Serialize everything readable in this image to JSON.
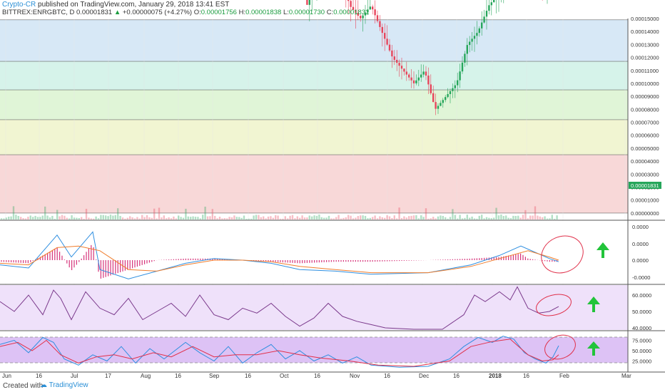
{
  "header": {
    "author": "Crypto-CR",
    "published": "published on TradingView.com, January 29, 2018 13:41 EST",
    "symbol": "BITTREX:ENRGBTC, D",
    "price": "0.00001831",
    "change_arrow": "▲",
    "change": "+0.00000075 (+4.27%)",
    "open_label": "O:",
    "open": "0.00001756",
    "high_label": "H:",
    "high": "0.00001838",
    "low_label": "L:",
    "low": "0.00001730",
    "close_label": "C:",
    "close": "0.00001831"
  },
  "footer": {
    "created_with": "Created with",
    "brand": "TradingView"
  },
  "colors": {
    "up": "#26a65b",
    "down": "#e8455c",
    "band_blue": "#d7e8f6",
    "band_teal": "#d6f3ea",
    "band_green": "#e0f5d7",
    "band_yellow": "#f1f5d2",
    "band_red": "#f8d8d8",
    "macd_line": "#2f8fe0",
    "signal_line": "#f07d2c",
    "histogram": "#d6337a",
    "rsi_line": "#7b3a8c",
    "indicator_bg": "#efe1fa",
    "annotation_circle": "#e0304a",
    "annotation_arrow": "#22c43a"
  },
  "chart_data": [
    {
      "type": "candlestick",
      "title": "BITTREX:ENRGBTC, D",
      "y_range": [
        -5e-07,
        1.5e-05
      ],
      "y_ticks": [
        "0.00015000",
        "0.00014000",
        "0.00013000",
        "0.00012000",
        "0.00011000",
        "0.00010000",
        "0.00009000",
        "0.00008000",
        "0.00007000",
        "0.00006000",
        "0.00005000",
        "0.00004000",
        "0.00003000",
        "0.00002000",
        "0.00001000",
        "0.00000000"
      ],
      "last_price_label": "0.00001831",
      "x_ticks": [
        "Jun",
        "16",
        "Jul",
        "17",
        "Aug",
        "16",
        "Sep",
        "16",
        "Oct",
        "16",
        "Nov",
        "16",
        "Dec",
        "16",
        "2018",
        "16",
        "Feb",
        "Mar"
      ],
      "price_path": [
        [
          0,
          3.3
        ],
        [
          10,
          3.6
        ],
        [
          25,
          3.8
        ],
        [
          40,
          3.2
        ],
        [
          55,
          3.9
        ],
        [
          65,
          4.0
        ],
        [
          75,
          5.3
        ],
        [
          80,
          8.4
        ],
        [
          84,
          5.4
        ],
        [
          92,
          5.0
        ],
        [
          100,
          5.3
        ],
        [
          110,
          6.1
        ],
        [
          120,
          5.7
        ],
        [
          130,
          3.0
        ],
        [
          140,
          3.1
        ],
        [
          155,
          3.6
        ],
        [
          170,
          4.1
        ],
        [
          185,
          3.2
        ],
        [
          200,
          2.9
        ],
        [
          215,
          2.8
        ],
        [
          230,
          2.7
        ],
        [
          245,
          2.5
        ],
        [
          260,
          2.6
        ],
        [
          275,
          2.6
        ],
        [
          285,
          3.3
        ],
        [
          300,
          3.1
        ],
        [
          315,
          3.0
        ],
        [
          330,
          2.9
        ],
        [
          345,
          3.0
        ],
        [
          360,
          3.2
        ],
        [
          375,
          2.9
        ],
        [
          390,
          2.8
        ],
        [
          405,
          2.5
        ],
        [
          420,
          2.0
        ],
        [
          430,
          1.6
        ],
        [
          445,
          1.8
        ],
        [
          460,
          2.1
        ],
        [
          475,
          1.9
        ],
        [
          490,
          1.6
        ],
        [
          505,
          1.5
        ],
        [
          520,
          1.6
        ],
        [
          535,
          1.4
        ],
        [
          550,
          1.2
        ],
        [
          565,
          1.1
        ],
        [
          580,
          1.0
        ],
        [
          595,
          1.1
        ],
        [
          610,
          0.8
        ],
        [
          625,
          0.9
        ],
        [
          640,
          1.0
        ],
        [
          655,
          1.3
        ],
        [
          670,
          1.4
        ],
        [
          685,
          1.6
        ],
        [
          700,
          1.7
        ],
        [
          715,
          2.0
        ],
        [
          725,
          3.0
        ],
        [
          735,
          2.2
        ],
        [
          745,
          1.9
        ],
        [
          760,
          1.7
        ],
        [
          775,
          1.8
        ],
        [
          783,
          1.83
        ]
      ],
      "levels": [
        0.0,
        4.5e-06,
        7.2e-06,
        9.5e-06,
        1.17e-05,
        1.49e-05
      ],
      "trendline": [
        [
          5,
          5.8
        ],
        [
          880,
          2.3
        ]
      ]
    },
    {
      "type": "line",
      "title": "",
      "y_ticks": [
        "0.0000",
        "0.0000",
        "0.0000",
        "-0.0000"
      ],
      "macd": [
        [
          0,
          -0.3
        ],
        [
          40,
          -0.5
        ],
        [
          80,
          1.6
        ],
        [
          100,
          0.2
        ],
        [
          130,
          1.8
        ],
        [
          140,
          -0.6
        ],
        [
          180,
          -1.2
        ],
        [
          220,
          -0.7
        ],
        [
          260,
          -0.2
        ],
        [
          300,
          0.1
        ],
        [
          340,
          0.0
        ],
        [
          380,
          -0.2
        ],
        [
          420,
          -0.6
        ],
        [
          470,
          -0.7
        ],
        [
          520,
          -0.9
        ],
        [
          600,
          -0.8
        ],
        [
          660,
          -0.3
        ],
        [
          700,
          0.3
        ],
        [
          730,
          0.9
        ],
        [
          750,
          0.5
        ],
        [
          770,
          0.1
        ],
        [
          783,
          -0.1
        ]
      ],
      "signal": [
        [
          0,
          -0.2
        ],
        [
          40,
          -0.3
        ],
        [
          80,
          0.8
        ],
        [
          110,
          0.9
        ],
        [
          140,
          0.6
        ],
        [
          180,
          -0.6
        ],
        [
          220,
          -0.7
        ],
        [
          260,
          -0.3
        ],
        [
          300,
          0.0
        ],
        [
          340,
          0.0
        ],
        [
          380,
          -0.1
        ],
        [
          420,
          -0.4
        ],
        [
          470,
          -0.6
        ],
        [
          520,
          -0.8
        ],
        [
          600,
          -0.8
        ],
        [
          660,
          -0.4
        ],
        [
          700,
          0.1
        ],
        [
          740,
          0.6
        ],
        [
          770,
          0.2
        ],
        [
          783,
          0.0
        ]
      ]
    },
    {
      "type": "line",
      "title": "",
      "y_ticks": [
        "60.0000",
        "50.0000",
        "40.0000"
      ],
      "rsi": [
        [
          0,
          56
        ],
        [
          20,
          50
        ],
        [
          40,
          60
        ],
        [
          60,
          48
        ],
        [
          75,
          63
        ],
        [
          85,
          58
        ],
        [
          100,
          45
        ],
        [
          120,
          62
        ],
        [
          140,
          52
        ],
        [
          160,
          48
        ],
        [
          180,
          58
        ],
        [
          200,
          45
        ],
        [
          220,
          50
        ],
        [
          240,
          55
        ],
        [
          260,
          47
        ],
        [
          280,
          60
        ],
        [
          300,
          48
        ],
        [
          320,
          45
        ],
        [
          340,
          52
        ],
        [
          360,
          49
        ],
        [
          380,
          55
        ],
        [
          400,
          47
        ],
        [
          420,
          41
        ],
        [
          440,
          46
        ],
        [
          460,
          55
        ],
        [
          480,
          47
        ],
        [
          500,
          44
        ],
        [
          520,
          42
        ],
        [
          540,
          40
        ],
        [
          580,
          39
        ],
        [
          620,
          39
        ],
        [
          650,
          48
        ],
        [
          665,
          60
        ],
        [
          680,
          56
        ],
        [
          700,
          62
        ],
        [
          715,
          57
        ],
        [
          725,
          65
        ],
        [
          740,
          52
        ],
        [
          755,
          49
        ],
        [
          770,
          50
        ],
        [
          783,
          53
        ]
      ]
    },
    {
      "type": "line",
      "title": "",
      "y_ticks": [
        "75.0000",
        "50.0000",
        "25.0000"
      ],
      "stoch_k": [
        [
          0,
          65
        ],
        [
          20,
          75
        ],
        [
          40,
          45
        ],
        [
          60,
          82
        ],
        [
          75,
          70
        ],
        [
          90,
          30
        ],
        [
          110,
          15
        ],
        [
          130,
          40
        ],
        [
          150,
          25
        ],
        [
          170,
          60
        ],
        [
          190,
          20
        ],
        [
          210,
          55
        ],
        [
          230,
          30
        ],
        [
          260,
          70
        ],
        [
          280,
          45
        ],
        [
          300,
          25
        ],
        [
          320,
          60
        ],
        [
          340,
          20
        ],
        [
          360,
          45
        ],
        [
          380,
          65
        ],
        [
          400,
          30
        ],
        [
          420,
          50
        ],
        [
          440,
          25
        ],
        [
          460,
          40
        ],
        [
          480,
          20
        ],
        [
          500,
          35
        ],
        [
          520,
          15
        ],
        [
          560,
          10
        ],
        [
          600,
          12
        ],
        [
          630,
          30
        ],
        [
          650,
          60
        ],
        [
          670,
          82
        ],
        [
          690,
          70
        ],
        [
          705,
          85
        ],
        [
          720,
          78
        ],
        [
          735,
          45
        ],
        [
          750,
          30
        ],
        [
          765,
          20
        ],
        [
          775,
          35
        ],
        [
          783,
          62
        ]
      ],
      "stoch_d": [
        [
          0,
          60
        ],
        [
          25,
          70
        ],
        [
          45,
          50
        ],
        [
          65,
          75
        ],
        [
          85,
          40
        ],
        [
          110,
          20
        ],
        [
          135,
          35
        ],
        [
          160,
          40
        ],
        [
          185,
          30
        ],
        [
          215,
          45
        ],
        [
          240,
          35
        ],
        [
          270,
          60
        ],
        [
          300,
          35
        ],
        [
          330,
          40
        ],
        [
          360,
          40
        ],
        [
          390,
          50
        ],
        [
          420,
          40
        ],
        [
          450,
          32
        ],
        [
          490,
          25
        ],
        [
          530,
          15
        ],
        [
          580,
          12
        ],
        [
          630,
          25
        ],
        [
          660,
          60
        ],
        [
          690,
          72
        ],
        [
          715,
          78
        ],
        [
          740,
          40
        ],
        [
          760,
          25
        ],
        [
          775,
          28
        ],
        [
          783,
          40
        ]
      ],
      "upper_band": 80,
      "lower_band": 20
    }
  ]
}
